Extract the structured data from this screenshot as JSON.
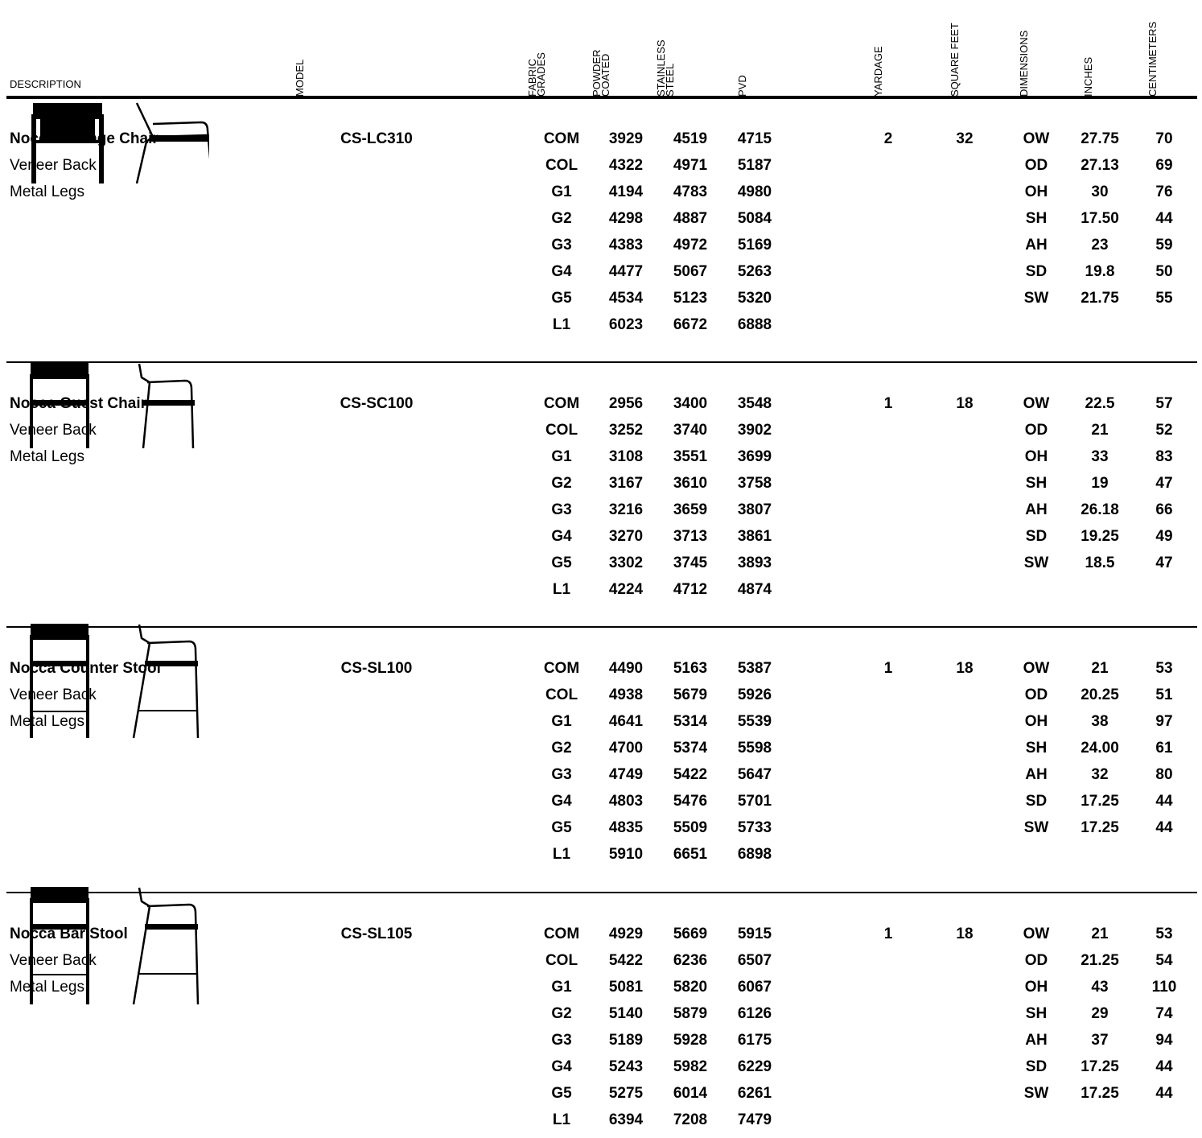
{
  "headers": {
    "description": "DESCRIPTION",
    "model": "MODEL",
    "fabric_grades": [
      "FABRIC",
      "GRADES"
    ],
    "powder_coated": [
      "POWDER",
      "COATED"
    ],
    "stainless_steel": [
      "STAINLESS",
      "STEEL"
    ],
    "pvd": "PVD",
    "yardage": "YARDAGE",
    "square_feet": "SQUARE FEET",
    "dimensions": "DIMENSIONS",
    "inches": "INCHES",
    "centimeters": "CENTIMETERS"
  },
  "products": [
    {
      "name": "Nocca Lounge Chair",
      "sub1": "Veneer Back",
      "sub2": "Metal Legs",
      "model": "CS-LC310",
      "yardage": "2",
      "square_feet": "32",
      "drawing_icon": "lounge-chair",
      "prices": [
        {
          "grade": "COM",
          "powder": "3929",
          "stainless": "4519",
          "pvd": "4715"
        },
        {
          "grade": "COL",
          "powder": "4322",
          "stainless": "4971",
          "pvd": "5187"
        },
        {
          "grade": "G1",
          "powder": "4194",
          "stainless": "4783",
          "pvd": "4980"
        },
        {
          "grade": "G2",
          "powder": "4298",
          "stainless": "4887",
          "pvd": "5084"
        },
        {
          "grade": "G3",
          "powder": "4383",
          "stainless": "4972",
          "pvd": "5169"
        },
        {
          "grade": "G4",
          "powder": "4477",
          "stainless": "5067",
          "pvd": "5263"
        },
        {
          "grade": "G5",
          "powder": "4534",
          "stainless": "5123",
          "pvd": "5320"
        },
        {
          "grade": "L1",
          "powder": "6023",
          "stainless": "6672",
          "pvd": "6888"
        }
      ],
      "dims": [
        {
          "code": "OW",
          "in": "27.75",
          "cm": "70"
        },
        {
          "code": "OD",
          "in": "27.13",
          "cm": "69"
        },
        {
          "code": "OH",
          "in": "30",
          "cm": "76"
        },
        {
          "code": "SH",
          "in": "17.50",
          "cm": "44"
        },
        {
          "code": "AH",
          "in": "23",
          "cm": "59"
        },
        {
          "code": "SD",
          "in": "19.8",
          "cm": "50"
        },
        {
          "code": "SW",
          "in": "21.75",
          "cm": "55"
        }
      ]
    },
    {
      "name": "Nocca Guest Chair",
      "sub1": "Veneer Back",
      "sub2": "Metal Legs",
      "model": "CS-SC100",
      "yardage": "1",
      "square_feet": "18",
      "drawing_icon": "guest-chair",
      "prices": [
        {
          "grade": "COM",
          "powder": "2956",
          "stainless": "3400",
          "pvd": "3548"
        },
        {
          "grade": "COL",
          "powder": "3252",
          "stainless": "3740",
          "pvd": "3902"
        },
        {
          "grade": "G1",
          "powder": "3108",
          "stainless": "3551",
          "pvd": "3699"
        },
        {
          "grade": "G2",
          "powder": "3167",
          "stainless": "3610",
          "pvd": "3758"
        },
        {
          "grade": "G3",
          "powder": "3216",
          "stainless": "3659",
          "pvd": "3807"
        },
        {
          "grade": "G4",
          "powder": "3270",
          "stainless": "3713",
          "pvd": "3861"
        },
        {
          "grade": "G5",
          "powder": "3302",
          "stainless": "3745",
          "pvd": "3893"
        },
        {
          "grade": "L1",
          "powder": "4224",
          "stainless": "4712",
          "pvd": "4874"
        }
      ],
      "dims": [
        {
          "code": "OW",
          "in": "22.5",
          "cm": "57"
        },
        {
          "code": "OD",
          "in": "21",
          "cm": "52"
        },
        {
          "code": "OH",
          "in": "33",
          "cm": "83"
        },
        {
          "code": "SH",
          "in": "19",
          "cm": "47"
        },
        {
          "code": "AH",
          "in": "26.18",
          "cm": "66"
        },
        {
          "code": "SD",
          "in": "19.25",
          "cm": "49"
        },
        {
          "code": "SW",
          "in": "18.5",
          "cm": "47"
        }
      ]
    },
    {
      "name": "Nocca Counter Stool",
      "sub1": "Veneer Back",
      "sub2": "Metal Legs",
      "model": "CS-SL100",
      "yardage": "1",
      "square_feet": "18",
      "drawing_icon": "counter-stool",
      "prices": [
        {
          "grade": "COM",
          "powder": "4490",
          "stainless": "5163",
          "pvd": "5387"
        },
        {
          "grade": "COL",
          "powder": "4938",
          "stainless": "5679",
          "pvd": "5926"
        },
        {
          "grade": "G1",
          "powder": "4641",
          "stainless": "5314",
          "pvd": "5539"
        },
        {
          "grade": "G2",
          "powder": "4700",
          "stainless": "5374",
          "pvd": "5598"
        },
        {
          "grade": "G3",
          "powder": "4749",
          "stainless": "5422",
          "pvd": "5647"
        },
        {
          "grade": "G4",
          "powder": "4803",
          "stainless": "5476",
          "pvd": "5701"
        },
        {
          "grade": "G5",
          "powder": "4835",
          "stainless": "5509",
          "pvd": "5733"
        },
        {
          "grade": "L1",
          "powder": "5910",
          "stainless": "6651",
          "pvd": "6898"
        }
      ],
      "dims": [
        {
          "code": "OW",
          "in": "21",
          "cm": "53"
        },
        {
          "code": "OD",
          "in": "20.25",
          "cm": "51"
        },
        {
          "code": "OH",
          "in": "38",
          "cm": "97"
        },
        {
          "code": "SH",
          "in": "24.00",
          "cm": "61"
        },
        {
          "code": "AH",
          "in": "32",
          "cm": "80"
        },
        {
          "code": "SD",
          "in": "17.25",
          "cm": "44"
        },
        {
          "code": "SW",
          "in": "17.25",
          "cm": "44"
        }
      ]
    },
    {
      "name": "Nocca Bar Stool",
      "sub1": "Veneer Back",
      "sub2": "Metal Legs",
      "model": "CS-SL105",
      "yardage": "1",
      "square_feet": "18",
      "drawing_icon": "bar-stool",
      "prices": [
        {
          "grade": "COM",
          "powder": "4929",
          "stainless": "5669",
          "pvd": "5915"
        },
        {
          "grade": "COL",
          "powder": "5422",
          "stainless": "6236",
          "pvd": "6507"
        },
        {
          "grade": "G1",
          "powder": "5081",
          "stainless": "5820",
          "pvd": "6067"
        },
        {
          "grade": "G2",
          "powder": "5140",
          "stainless": "5879",
          "pvd": "6126"
        },
        {
          "grade": "G3",
          "powder": "5189",
          "stainless": "5928",
          "pvd": "6175"
        },
        {
          "grade": "G4",
          "powder": "5243",
          "stainless": "5982",
          "pvd": "6229"
        },
        {
          "grade": "G5",
          "powder": "5275",
          "stainless": "6014",
          "pvd": "6261"
        },
        {
          "grade": "L1",
          "powder": "6394",
          "stainless": "7208",
          "pvd": "7479"
        }
      ],
      "dims": [
        {
          "code": "OW",
          "in": "21",
          "cm": "53"
        },
        {
          "code": "OD",
          "in": "21.25",
          "cm": "54"
        },
        {
          "code": "OH",
          "in": "43",
          "cm": "110"
        },
        {
          "code": "SH",
          "in": "29",
          "cm": "74"
        },
        {
          "code": "AH",
          "in": "37",
          "cm": "94"
        },
        {
          "code": "SD",
          "in": "17.25",
          "cm": "44"
        },
        {
          "code": "SW",
          "in": "17.25",
          "cm": "44"
        }
      ]
    }
  ]
}
